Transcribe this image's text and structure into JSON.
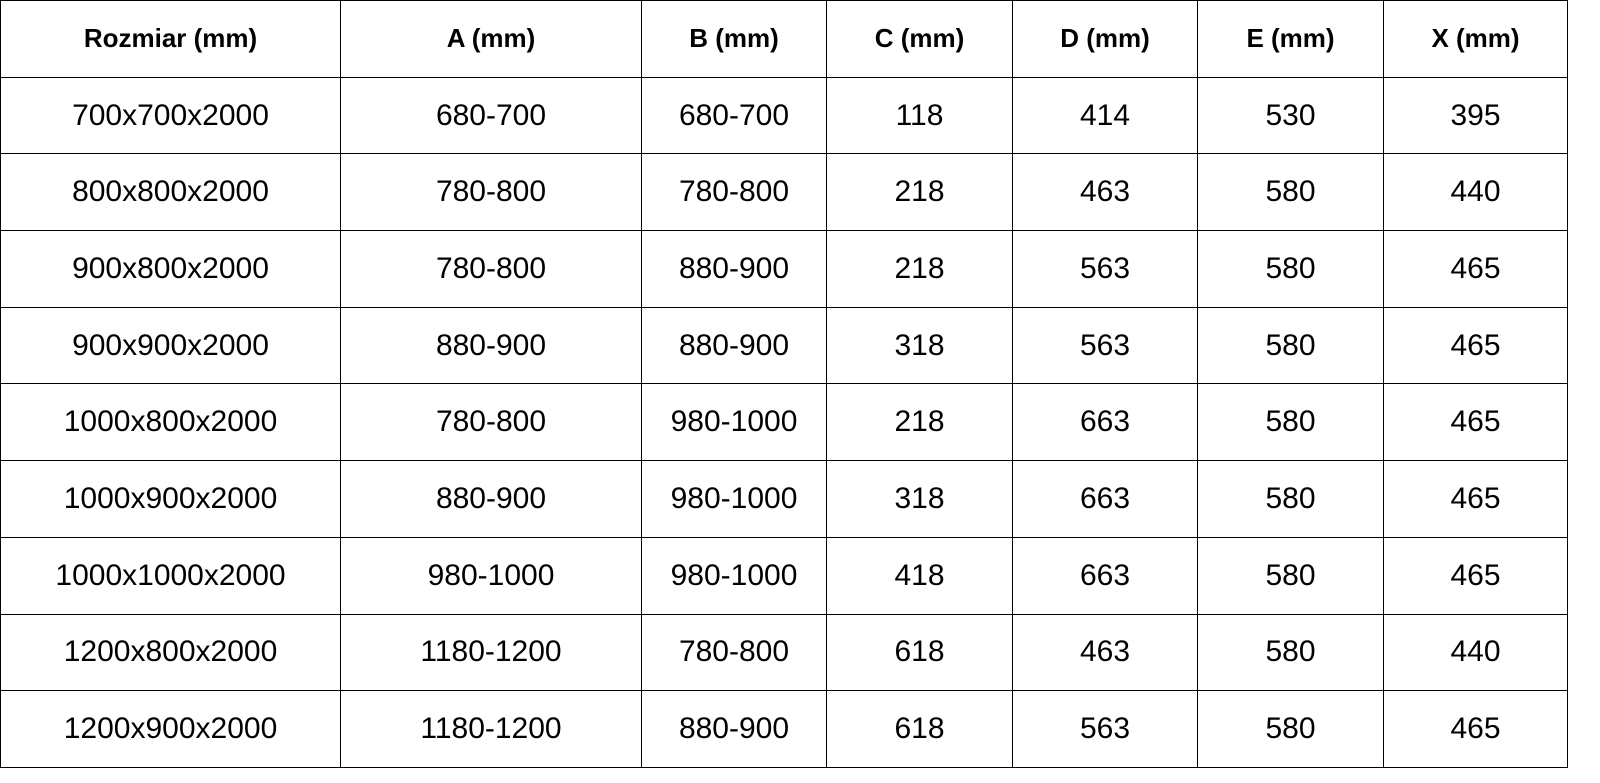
{
  "table": {
    "headers": [
      "Rozmiar (mm)",
      "A (mm)",
      "B (mm)",
      "C (mm)",
      "D (mm)",
      "E (mm)",
      "X (mm)"
    ],
    "rows": [
      [
        "700x700x2000",
        "680-700",
        "680-700",
        "118",
        "414",
        "530",
        "395"
      ],
      [
        "800x800x2000",
        "780-800",
        "780-800",
        "218",
        "463",
        "580",
        "440"
      ],
      [
        "900x800x2000",
        "780-800",
        "880-900",
        "218",
        "563",
        "580",
        "465"
      ],
      [
        "900x900x2000",
        "880-900",
        "880-900",
        "318",
        "563",
        "580",
        "465"
      ],
      [
        "1000x800x2000",
        "780-800",
        "980-1000",
        "218",
        "663",
        "580",
        "465"
      ],
      [
        "1000x900x2000",
        "880-900",
        "980-1000",
        "318",
        "663",
        "580",
        "465"
      ],
      [
        "1000x1000x2000",
        "980-1000",
        "980-1000",
        "418",
        "663",
        "580",
        "465"
      ],
      [
        "1200x800x2000",
        "1180-1200",
        "780-800",
        "618",
        "463",
        "580",
        "440"
      ],
      [
        "1200x900x2000",
        "1180-1200",
        "880-900",
        "618",
        "563",
        "580",
        "465"
      ]
    ]
  }
}
